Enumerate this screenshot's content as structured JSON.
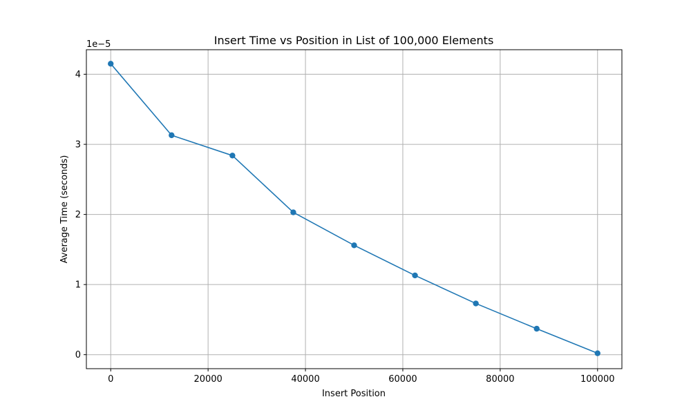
{
  "chart_data": {
    "type": "line",
    "title": "Insert Time vs Position in List of 100,000 Elements",
    "xlabel": "Insert Position",
    "ylabel": "Average Time (seconds)",
    "y_offset_label": "1e−5",
    "xlim": [
      -5000,
      105000
    ],
    "ylim": [
      -2e-06,
      4.35e-05
    ],
    "x_ticks": [
      0,
      20000,
      40000,
      60000,
      80000,
      100000
    ],
    "x_tick_labels": [
      "0",
      "20000",
      "40000",
      "60000",
      "80000",
      "100000"
    ],
    "y_ticks": [
      0,
      1e-05,
      2e-05,
      3e-05,
      4e-05
    ],
    "y_tick_labels": [
      "0",
      "1",
      "2",
      "3",
      "4"
    ],
    "grid": true,
    "line_color": "#1f77b4",
    "series": [
      {
        "x": [
          0,
          12500,
          25000,
          37500,
          50000,
          62500,
          75000,
          87500,
          100000
        ],
        "values": [
          4.15e-05,
          3.13e-05,
          2.84e-05,
          2.03e-05,
          1.56e-05,
          1.13e-05,
          7.3e-06,
          3.7e-06,
          2e-07
        ]
      }
    ]
  }
}
